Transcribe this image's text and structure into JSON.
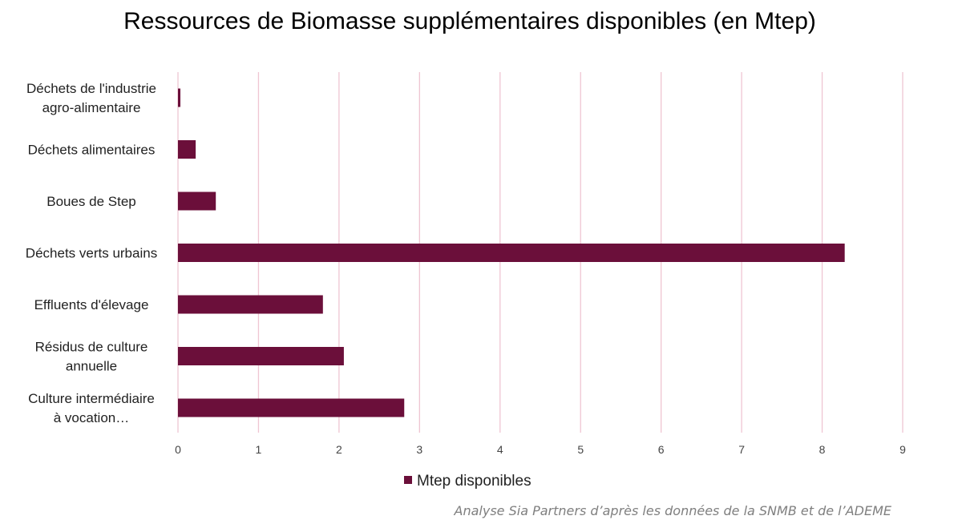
{
  "chart_data": {
    "type": "bar",
    "orientation": "horizontal",
    "title": "Ressources de Biomasse supplémentaires disponibles (en Mtep)",
    "categories": [
      [
        "Déchets de l'industrie",
        "agro-alimentaire"
      ],
      [
        "Déchets alimentaires"
      ],
      [
        "Boues de Step"
      ],
      [
        "Déchets verts urbains"
      ],
      [
        "Effluents d'élevage"
      ],
      [
        "Résidus de culture",
        "annuelle"
      ],
      [
        "Culture intermédiaire",
        "à vocation…"
      ]
    ],
    "series": [
      {
        "name": "Mtep disponibles",
        "values": [
          0.03,
          0.22,
          0.47,
          8.28,
          1.8,
          2.06,
          2.81
        ],
        "color": "#6b0f3a"
      }
    ],
    "xlim": [
      0,
      9
    ],
    "xticks": [
      0,
      1,
      2,
      3,
      4,
      5,
      6,
      7,
      8,
      9
    ],
    "grid": "vertical",
    "grid_color": "#efc5d2",
    "legend_position": "bottom"
  },
  "source_note": "Analyse Sia Partners d’après les données de la SNMB et de l’ADEME"
}
